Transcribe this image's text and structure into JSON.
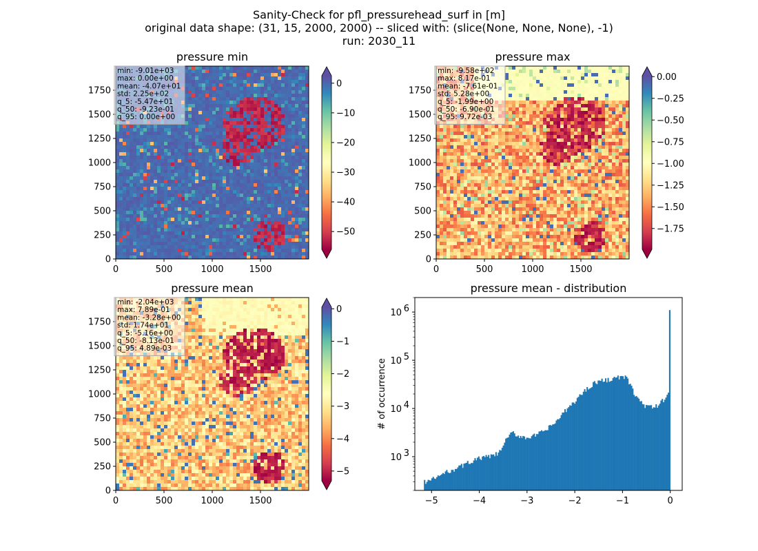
{
  "figure": {
    "title_lines": [
      "Sanity-Check for pfl_pressurehead_surf in [m]",
      "original data shape: (31, 15, 2000, 2000) -- sliced with: (slice(None, None, None), -1)",
      "run: 2030_11"
    ]
  },
  "chart_data": [
    {
      "type": "heatmap",
      "title": "pressure min",
      "colormap": "Spectral",
      "extend": "both",
      "over_color": "#5e4fa2",
      "under_color": "#9e0142",
      "xlim": [
        0,
        2000
      ],
      "ylim": [
        0,
        2000
      ],
      "x_ticks": [
        0,
        500,
        1000,
        1500
      ],
      "y_ticks": [
        0,
        250,
        500,
        750,
        1000,
        1250,
        1500,
        1750
      ],
      "clim": [
        -56,
        2.5
      ],
      "colorbar_ticks": [
        "0",
        "−10",
        "−20",
        "−30",
        "−40",
        "−50"
      ],
      "colorbar_tick_values": [
        0,
        -10,
        -20,
        -30,
        -40,
        -50
      ],
      "stats": [
        "min: -9.01e+03",
        "max: 0.00e+00",
        "mean: -4.07e+01",
        "std: 2.25e+02",
        "q_5: -5.47e+01",
        "q_50: -9.23e-01",
        "q_95: 0.00e+00"
      ]
    },
    {
      "type": "heatmap",
      "title": "pressure max",
      "colormap": "Spectral",
      "extend": "both",
      "over_color": "#5e4fa2",
      "under_color": "#9e0142",
      "xlim": [
        0,
        2000
      ],
      "ylim": [
        0,
        2000
      ],
      "x_ticks": [
        0,
        500,
        1000,
        1500
      ],
      "y_ticks": [
        0,
        250,
        500,
        750,
        1000,
        1250,
        1500,
        1750
      ],
      "clim": [
        -1.99,
        0.01
      ],
      "colorbar_ticks": [
        "0.00",
        "−0.25",
        "−0.50",
        "−0.75",
        "−1.00",
        "−1.25",
        "−1.50",
        "−1.75"
      ],
      "colorbar_tick_values": [
        0,
        -0.25,
        -0.5,
        -0.75,
        -1.0,
        -1.25,
        -1.5,
        -1.75
      ],
      "stats": [
        "min: -9.58e+02",
        "max: 8.17e-01",
        "mean: -7.61e-01",
        "std: 5.28e+00",
        "q_5: -1.99e+00",
        "q_50: -6.90e-01",
        "q_95: 9.72e-03"
      ]
    },
    {
      "type": "heatmap",
      "title": "pressure mean",
      "colormap": "Spectral",
      "extend": "both",
      "over_color": "#5e4fa2",
      "under_color": "#9e0142",
      "xlim": [
        0,
        2000
      ],
      "ylim": [
        0,
        2000
      ],
      "x_ticks": [
        0,
        500,
        1000,
        1500
      ],
      "y_ticks": [
        0,
        250,
        500,
        750,
        1000,
        1250,
        1500,
        1750
      ],
      "clim": [
        -5.3,
        0.05
      ],
      "colorbar_ticks": [
        "0",
        "−1",
        "−2",
        "−3",
        "−4",
        "−5"
      ],
      "colorbar_tick_values": [
        0,
        -1,
        -2,
        -3,
        -4,
        -5
      ],
      "stats": [
        "min: -2.04e+03",
        "max: 7.89e-01",
        "mean: -3.28e+00",
        "std: 1.74e+01",
        "q_5: -5.16e+00",
        "q_50: -8.13e-01",
        "q_95: 4.89e-03"
      ]
    },
    {
      "type": "bar",
      "title": "pressure mean - distribution",
      "xlabel": "",
      "ylabel": "# of occurrence",
      "y_scale": "log",
      "bar_color": "#1f77b4",
      "xlim": [
        -5.35,
        0.25
      ],
      "ylim": [
        200,
        2000000
      ],
      "x_ticks": [
        -5,
        -4,
        -3,
        -2,
        -1,
        0
      ],
      "x_tick_labels": [
        "−5",
        "−4",
        "−3",
        "−2",
        "−1",
        "0"
      ],
      "y_ticks": [
        1000,
        10000,
        100000,
        1000000
      ],
      "y_tick_labels": [
        [
          "10",
          "3"
        ],
        [
          "10",
          "4"
        ],
        [
          "10",
          "5"
        ],
        [
          "10",
          "6"
        ]
      ],
      "bin_range": [
        -5.16,
        0
      ],
      "points": [
        [
          -5.16,
          300
        ],
        [
          -5.0,
          330
        ],
        [
          -4.8,
          420
        ],
        [
          -4.6,
          520
        ],
        [
          -4.4,
          620
        ],
        [
          -4.2,
          780
        ],
        [
          -4.0,
          920
        ],
        [
          -3.8,
          1000
        ],
        [
          -3.6,
          1150
        ],
        [
          -3.5,
          1700
        ],
        [
          -3.4,
          2600
        ],
        [
          -3.3,
          3100
        ],
        [
          -3.2,
          2750
        ],
        [
          -3.0,
          2500
        ],
        [
          -2.8,
          2800
        ],
        [
          -2.6,
          3600
        ],
        [
          -2.4,
          5200
        ],
        [
          -2.2,
          8800
        ],
        [
          -2.0,
          14000
        ],
        [
          -1.8,
          23000
        ],
        [
          -1.6,
          34000
        ],
        [
          -1.4,
          38000
        ],
        [
          -1.2,
          42000
        ],
        [
          -1.0,
          45000
        ],
        [
          -0.9,
          42000
        ],
        [
          -0.8,
          25000
        ],
        [
          -0.7,
          17000
        ],
        [
          -0.6,
          13000
        ],
        [
          -0.5,
          11000
        ],
        [
          -0.4,
          10500
        ],
        [
          -0.3,
          11000
        ],
        [
          -0.2,
          13000
        ],
        [
          -0.1,
          17000
        ],
        [
          -0.03,
          22000
        ],
        [
          0.0,
          1100000
        ]
      ]
    }
  ]
}
